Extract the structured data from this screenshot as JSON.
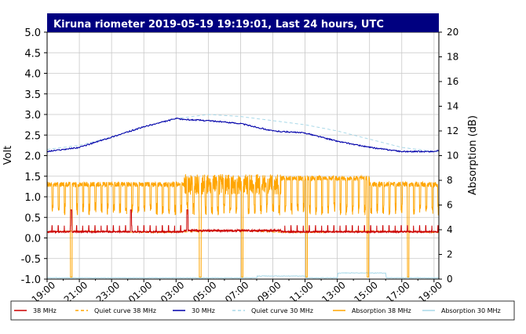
{
  "chart_data": {
    "type": "line",
    "title": "Kiruna riometer 2019-05-19 19:19:01, Last 24 hours, UTC",
    "ylabel": "Volt",
    "y2label": "Absorption (dB)",
    "ylim": [
      -1.0,
      5.0
    ],
    "y2lim": [
      0,
      20
    ],
    "x_range_hours": [
      0,
      24.3
    ],
    "yticks": [
      "-1.0",
      "-0.5",
      "0.0",
      "0.5",
      "1.0",
      "1.5",
      "2.0",
      "2.5",
      "3.0",
      "3.5",
      "4.0",
      "4.5",
      "5.0"
    ],
    "y2ticks": [
      "0",
      "2",
      "4",
      "6",
      "8",
      "10",
      "12",
      "14",
      "16",
      "18",
      "20"
    ],
    "xticks": [
      {
        "label": "19:00",
        "hour": 0
      },
      {
        "label": "21:00",
        "hour": 2
      },
      {
        "label": "23:00",
        "hour": 4
      },
      {
        "label": "01:00",
        "hour": 6
      },
      {
        "label": "03:00",
        "hour": 8
      },
      {
        "label": "05:00",
        "hour": 10
      },
      {
        "label": "07:00",
        "hour": 12
      },
      {
        "label": "09:00",
        "hour": 14
      },
      {
        "label": "11:00",
        "hour": 16
      },
      {
        "label": "13:00",
        "hour": 18
      },
      {
        "label": "15:00",
        "hour": 20
      },
      {
        "label": "17:00",
        "hour": 22
      },
      {
        "label": "19:00",
        "hour": 24
      }
    ],
    "grid": true,
    "legend_position": "bottom",
    "series": [
      {
        "name": "38 MHz",
        "axis": "left",
        "color": "#cc0000",
        "style": "solid",
        "baseline_volt": 0.15,
        "pulse_volt": 0.3
      },
      {
        "name": "Quiet curve 38 MHz",
        "axis": "left",
        "color": "#ffa500",
        "style": "dashed",
        "approx_volt": 0.15
      },
      {
        "name": "30 MHz",
        "axis": "left",
        "color": "#0000aa",
        "style": "solid",
        "x": [
          0,
          2,
          4,
          6,
          8,
          8.5,
          10,
          12,
          14,
          16,
          18,
          20,
          22,
          24,
          24.3
        ],
        "y": [
          2.1,
          2.2,
          2.45,
          2.7,
          2.9,
          2.88,
          2.85,
          2.78,
          2.6,
          2.55,
          2.35,
          2.2,
          2.1,
          2.1,
          2.12
        ]
      },
      {
        "name": "Quiet curve 30 MHz",
        "axis": "left",
        "color": "#a8d8e8",
        "style": "dashed",
        "x": [
          0,
          2,
          4,
          6,
          8,
          10,
          12,
          14,
          16,
          18,
          20,
          22,
          24,
          24.3
        ],
        "y": [
          2.15,
          2.25,
          2.45,
          2.7,
          2.9,
          3.0,
          2.95,
          2.85,
          2.75,
          2.6,
          2.4,
          2.2,
          2.1,
          2.1
        ]
      },
      {
        "name": "Absorption 38 MHz",
        "axis": "right",
        "color": "#ffa500",
        "style": "solid",
        "baseline_db": 1.3,
        "pulse_db": 1.45
      },
      {
        "name": "Absorption 30 MHz",
        "axis": "right",
        "color": "#a8d8e8",
        "style": "solid",
        "approx_db": 0.1
      }
    ]
  }
}
